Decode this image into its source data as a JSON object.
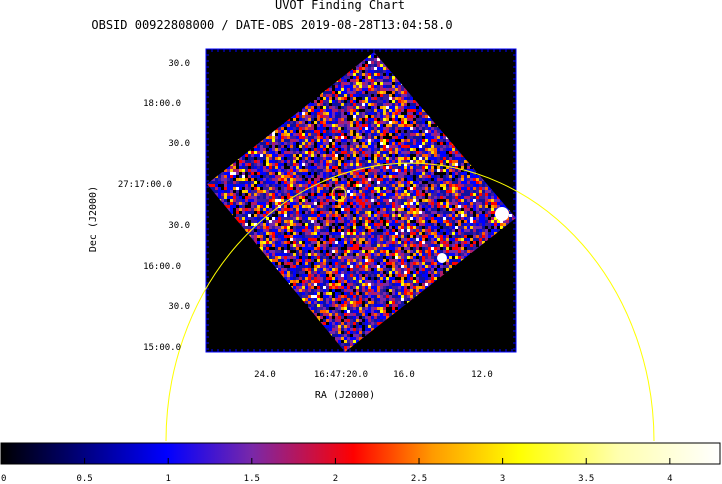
{
  "header": {
    "title": "UVOT Finding Chart",
    "subtitle": "OBSID 00922808000 / DATE-OBS 2019-08-28T13:04:58.0"
  },
  "chart_data": {
    "type": "heatmap",
    "xlabel": "RA (J2000)",
    "ylabel": "Dec (J2000)",
    "x_ticks": [
      "24.0",
      "16:47:20.0",
      "16.0",
      "12.0"
    ],
    "y_ticks": [
      "30.0",
      "18:00.0",
      "30.0",
      "27:17:00.0",
      "30.0",
      "16:00.0",
      "30.0",
      "15:00.0"
    ],
    "colormap": "heat (black-blue-purple-red-yellow-white)",
    "colorbar": {
      "ticks": [
        "0",
        "0.5",
        "1",
        "1.5",
        "2",
        "2.5",
        "3",
        "3.5",
        "4"
      ],
      "range": [
        0,
        4.3
      ]
    },
    "overlays": [
      {
        "shape": "circle",
        "color": "#ffff00",
        "description": "small source marker circle"
      },
      {
        "shape": "circle",
        "color": "#ffff00",
        "description": "large error circle arc"
      }
    ],
    "bright_sources": 2,
    "grid": false
  },
  "colors": {
    "frame": "#0000ff",
    "overlay": "#ffff00",
    "background": "#000000"
  }
}
